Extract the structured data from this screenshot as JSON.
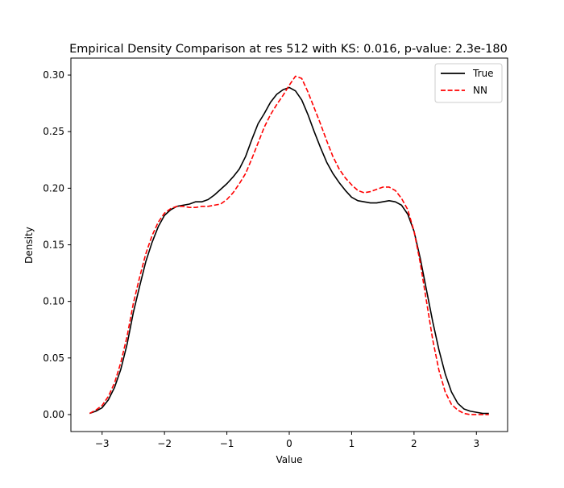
{
  "chart_data": {
    "type": "line",
    "title": "Empirical Density Comparison at res 512 with KS: 0.016, p-value: 2.3e-180",
    "xlabel": "Value",
    "ylabel": "Density",
    "xlim": [
      -3.5,
      3.5
    ],
    "ylim": [
      -0.015,
      0.315
    ],
    "xticks": [
      -3,
      -2,
      -1,
      0,
      1,
      2,
      3
    ],
    "xtick_labels": [
      "−3",
      "−2",
      "−1",
      "0",
      "1",
      "2",
      "3"
    ],
    "yticks": [
      0.0,
      0.05,
      0.1,
      0.15,
      0.2,
      0.25,
      0.3
    ],
    "ytick_labels": [
      "0.00",
      "0.05",
      "0.10",
      "0.15",
      "0.20",
      "0.25",
      "0.30"
    ],
    "grid": false,
    "legend_position": "top-right",
    "series": [
      {
        "name": "True",
        "color": "#000000",
        "style": "solid",
        "x": [
          -3.2,
          -3.1,
          -3.0,
          -2.9,
          -2.8,
          -2.7,
          -2.6,
          -2.5,
          -2.4,
          -2.3,
          -2.2,
          -2.1,
          -2.0,
          -1.9,
          -1.8,
          -1.7,
          -1.6,
          -1.5,
          -1.4,
          -1.3,
          -1.2,
          -1.1,
          -1.0,
          -0.9,
          -0.8,
          -0.7,
          -0.6,
          -0.5,
          -0.4,
          -0.3,
          -0.2,
          -0.1,
          0.0,
          0.1,
          0.2,
          0.3,
          0.4,
          0.5,
          0.6,
          0.7,
          0.8,
          0.9,
          1.0,
          1.1,
          1.2,
          1.3,
          1.4,
          1.5,
          1.6,
          1.7,
          1.8,
          1.9,
          2.0,
          2.1,
          2.2,
          2.3,
          2.4,
          2.5,
          2.6,
          2.7,
          2.8,
          2.9,
          3.0,
          3.1,
          3.2
        ],
        "y": [
          0.001,
          0.003,
          0.006,
          0.013,
          0.024,
          0.04,
          0.062,
          0.09,
          0.113,
          0.135,
          0.152,
          0.166,
          0.176,
          0.181,
          0.184,
          0.185,
          0.186,
          0.188,
          0.188,
          0.19,
          0.194,
          0.199,
          0.204,
          0.21,
          0.217,
          0.228,
          0.243,
          0.257,
          0.266,
          0.276,
          0.283,
          0.287,
          0.289,
          0.286,
          0.278,
          0.265,
          0.25,
          0.236,
          0.223,
          0.213,
          0.205,
          0.198,
          0.192,
          0.189,
          0.188,
          0.187,
          0.187,
          0.188,
          0.189,
          0.188,
          0.185,
          0.177,
          0.162,
          0.138,
          0.11,
          0.082,
          0.057,
          0.036,
          0.02,
          0.01,
          0.005,
          0.003,
          0.002,
          0.001,
          0.001
        ]
      },
      {
        "name": "NN",
        "color": "#ff0000",
        "style": "dashed",
        "x": [
          -3.2,
          -3.1,
          -3.0,
          -2.9,
          -2.8,
          -2.7,
          -2.6,
          -2.5,
          -2.4,
          -2.3,
          -2.2,
          -2.1,
          -2.0,
          -1.9,
          -1.8,
          -1.7,
          -1.6,
          -1.5,
          -1.4,
          -1.3,
          -1.2,
          -1.1,
          -1.0,
          -0.9,
          -0.8,
          -0.7,
          -0.6,
          -0.5,
          -0.4,
          -0.3,
          -0.2,
          -0.1,
          0.0,
          0.1,
          0.2,
          0.3,
          0.4,
          0.5,
          0.6,
          0.7,
          0.8,
          0.9,
          1.0,
          1.1,
          1.2,
          1.3,
          1.4,
          1.5,
          1.6,
          1.7,
          1.8,
          1.9,
          2.0,
          2.1,
          2.2,
          2.3,
          2.4,
          2.5,
          2.6,
          2.7,
          2.8,
          2.9,
          3.0,
          3.1,
          3.2
        ],
        "y": [
          0.001,
          0.004,
          0.008,
          0.016,
          0.028,
          0.046,
          0.069,
          0.098,
          0.121,
          0.142,
          0.158,
          0.17,
          0.178,
          0.182,
          0.184,
          0.184,
          0.183,
          0.183,
          0.184,
          0.184,
          0.185,
          0.186,
          0.19,
          0.196,
          0.204,
          0.213,
          0.226,
          0.24,
          0.254,
          0.265,
          0.274,
          0.282,
          0.291,
          0.299,
          0.297,
          0.285,
          0.271,
          0.257,
          0.242,
          0.228,
          0.217,
          0.209,
          0.203,
          0.198,
          0.196,
          0.197,
          0.199,
          0.201,
          0.201,
          0.198,
          0.191,
          0.181,
          0.162,
          0.134,
          0.1,
          0.066,
          0.039,
          0.02,
          0.009,
          0.004,
          0.001,
          0.0,
          0.0,
          0.0,
          0.0
        ]
      }
    ]
  }
}
